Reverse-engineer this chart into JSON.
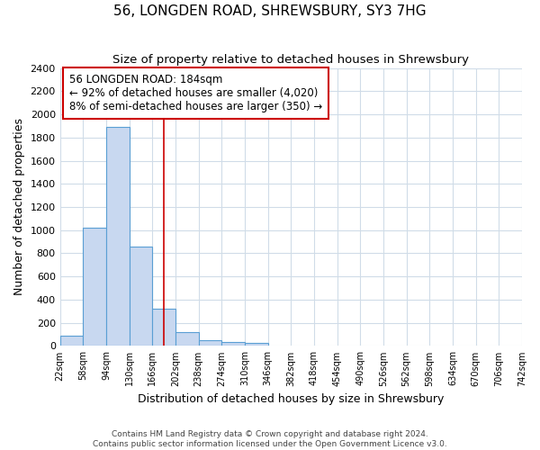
{
  "title": "56, LONGDEN ROAD, SHREWSBURY, SY3 7HG",
  "subtitle": "Size of property relative to detached houses in Shrewsbury",
  "xlabel": "Distribution of detached houses by size in Shrewsbury",
  "ylabel": "Number of detached properties",
  "bin_edges": [
    22,
    58,
    94,
    130,
    166,
    202,
    238,
    274,
    310,
    346,
    382,
    418,
    454,
    490,
    526,
    562,
    598,
    634,
    670,
    706,
    742
  ],
  "bar_heights": [
    90,
    1020,
    1890,
    860,
    320,
    120,
    50,
    35,
    25,
    0,
    0,
    0,
    0,
    0,
    0,
    0,
    0,
    0,
    0,
    0
  ],
  "bar_color": "#c8d8f0",
  "bar_edge_color": "#5a9fd4",
  "property_size": 184,
  "vline_color": "#cc0000",
  "annotation_text": "56 LONGDEN ROAD: 184sqm\n← 92% of detached houses are smaller (4,020)\n8% of semi-detached houses are larger (350) →",
  "annotation_box_color": "#ffffff",
  "annotation_box_edge": "#cc0000",
  "ylim": [
    0,
    2400
  ],
  "yticks": [
    0,
    200,
    400,
    600,
    800,
    1000,
    1200,
    1400,
    1600,
    1800,
    2000,
    2200,
    2400
  ],
  "tick_labels": [
    "22sqm",
    "58sqm",
    "94sqm",
    "130sqm",
    "166sqm",
    "202sqm",
    "238sqm",
    "274sqm",
    "310sqm",
    "346sqm",
    "382sqm",
    "418sqm",
    "454sqm",
    "490sqm",
    "526sqm",
    "562sqm",
    "598sqm",
    "634sqm",
    "670sqm",
    "706sqm",
    "742sqm"
  ],
  "footer_text": "Contains HM Land Registry data © Crown copyright and database right 2024.\nContains public sector information licensed under the Open Government Licence v3.0.",
  "bg_color": "#ffffff",
  "grid_color": "#d0dce8"
}
